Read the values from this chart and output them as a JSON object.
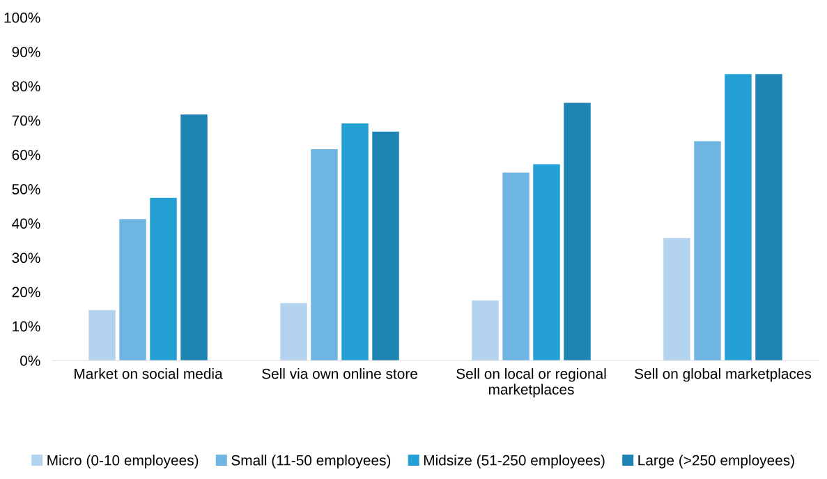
{
  "chart_data": {
    "type": "bar",
    "categories": [
      "Market on social media",
      "Sell via own online store",
      "Sell on local or regional\nmarketplaces",
      "Sell on global marketplaces"
    ],
    "series": [
      {
        "name": "Micro (0-10 employees)",
        "color": "#b4d3ef",
        "values": [
          14.7,
          16.7,
          17.5,
          35.7
        ]
      },
      {
        "name": "Small (11-50 employees)",
        "color": "#6fb5e2",
        "values": [
          41.2,
          61.6,
          54.8,
          63.9
        ]
      },
      {
        "name": "Midsize (51-250 employees)",
        "color": "#25a0d4",
        "values": [
          47.4,
          69.1,
          57.2,
          83.5
        ]
      },
      {
        "name": "Large (>250 employees)",
        "color": "#1e84b3",
        "values": [
          71.7,
          66.7,
          75.1,
          83.5
        ]
      }
    ],
    "ylim": [
      0,
      100
    ],
    "yticks": [
      {
        "value": 0,
        "label": "0%"
      },
      {
        "value": 10,
        "label": "10%"
      },
      {
        "value": 20,
        "label": "20%"
      },
      {
        "value": 30,
        "label": "30%"
      },
      {
        "value": 40,
        "label": "40%"
      },
      {
        "value": 50,
        "label": "50%"
      },
      {
        "value": 60,
        "label": "60%"
      },
      {
        "value": 70,
        "label": "70%"
      },
      {
        "value": 80,
        "label": "80%"
      },
      {
        "value": 90,
        "label": "90%"
      },
      {
        "value": 100,
        "label": "100%"
      }
    ],
    "grid": false,
    "legend": "bottom"
  }
}
